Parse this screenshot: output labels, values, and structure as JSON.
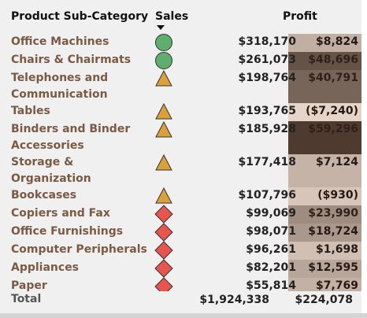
{
  "chart_data": {
    "type": "table",
    "columns": [
      "Product Sub-Category",
      "Sales",
      "Profit"
    ],
    "rows": [
      {
        "label": "Office Machines",
        "label_lines": "Office Machines",
        "shape": "circle",
        "sales": "$318,170",
        "profit": "$8,824",
        "profit_value": 8824
      },
      {
        "label": "Chairs & Chairmats",
        "label_lines": "Chairs & Chairmats",
        "shape": "circle",
        "sales": "$261,073",
        "profit": "$48,696",
        "profit_value": 48696
      },
      {
        "label": "Telephones and Communication",
        "label_lines": "Telephones and\nCommunication",
        "shape": "triangle",
        "sales": "$198,764",
        "profit": "$40,791",
        "profit_value": 40791
      },
      {
        "label": "Tables",
        "label_lines": "Tables",
        "shape": "triangle",
        "sales": "$193,765",
        "profit": "($7,240)",
        "profit_value": -7240
      },
      {
        "label": "Binders and Binder Accessories",
        "label_lines": "Binders and Binder\nAccessories",
        "shape": "triangle",
        "sales": "$185,928",
        "profit": "$59,296",
        "profit_value": 59296
      },
      {
        "label": "Storage & Organization",
        "label_lines": "Storage &\nOrganization",
        "shape": "triangle",
        "sales": "$177,418",
        "profit": "$7,124",
        "profit_value": 7124
      },
      {
        "label": "Bookcases",
        "label_lines": "Bookcases",
        "shape": "triangle",
        "sales": "$107,796",
        "profit": "($930)",
        "profit_value": -930
      },
      {
        "label": "Copiers and Fax",
        "label_lines": "Copiers and Fax",
        "shape": "diamond",
        "sales": "$99,069",
        "profit": "$23,990",
        "profit_value": 23990
      },
      {
        "label": "Office Furnishings",
        "label_lines": "Office Furnishings",
        "shape": "diamond",
        "sales": "$98,071",
        "profit": "$18,724",
        "profit_value": 18724
      },
      {
        "label": "Computer Peripherals",
        "label_lines": "Computer Peripherals",
        "shape": "diamond",
        "sales": "$96,261",
        "profit": "$1,698",
        "profit_value": 1698
      },
      {
        "label": "Appliances",
        "label_lines": "Appliances",
        "shape": "diamond",
        "sales": "$82,201",
        "profit": "$12,595",
        "profit_value": 12595
      },
      {
        "label": "Paper",
        "label_lines": "Paper",
        "shape": "diamond",
        "sales": "$55,814",
        "profit": "$7,769",
        "profit_value": 7769
      }
    ],
    "total": {
      "label": "Total",
      "sales": "$1,924,338",
      "profit": "$224,078"
    },
    "sort": {
      "column": "Sales",
      "direction": "descending"
    },
    "colors": {
      "circle": "#5fae6e",
      "triangle": "#dba03a",
      "diamond": "#e8544e",
      "label_text": "#7a5a45",
      "profit_scale_low": "#e6d4c8",
      "profit_scale_high": "#4e3a2e"
    }
  }
}
